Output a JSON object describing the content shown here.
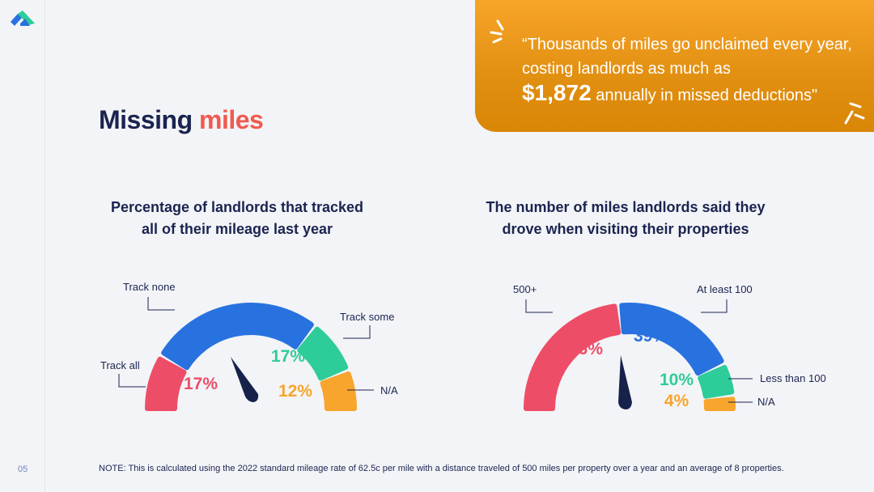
{
  "page": {
    "title_main": "Missing",
    "title_accent": "miles",
    "page_number": "05",
    "note": "NOTE: This is calculated using the 2022 standard mileage rate of 62.5c per mile with a distance traveled of 500 miles per property over a year and an average of 8 properties."
  },
  "quote": {
    "line_before": "“Thousands of miles go unclaimed every year, costing landlords as much as",
    "amount": "$1,872",
    "line_after": "annually in missed deductions\""
  },
  "colors": {
    "navy": "#1b2450",
    "red": "#ee4d68",
    "blue": "#2872e0",
    "green": "#2ecc9b",
    "orange": "#f7a52c",
    "title_accent": "#f05a4f"
  },
  "chart_data": [
    {
      "type": "gauge",
      "title_line1": "Percentage of landlords that tracked",
      "title_line2": "all of their mileage last year",
      "segments": [
        {
          "label": "Track all",
          "value": 17,
          "display": "17%",
          "color": "#ee4d68"
        },
        {
          "label": "Track none",
          "value": 54,
          "display": "54%",
          "color": "#2872e0"
        },
        {
          "label": "Track some",
          "value": 17,
          "display": "17%",
          "color": "#2ecc9b"
        },
        {
          "label": "N/A",
          "value": 12,
          "display": "12%",
          "color": "#f7a52c"
        }
      ]
    },
    {
      "type": "gauge",
      "title_line1": "The number of miles landlords said they",
      "title_line2": "drove when visiting their properties",
      "segments": [
        {
          "label": "500+",
          "value": 46,
          "display": "46%",
          "color": "#ee4d68"
        },
        {
          "label": "At least 100",
          "value": 39,
          "display": "39%",
          "color": "#2872e0"
        },
        {
          "label": "Less than 100",
          "value": 10,
          "display": "10%",
          "color": "#2ecc9b"
        },
        {
          "label": "N/A",
          "value": 4,
          "display": "4%",
          "color": "#f7a52c"
        }
      ]
    }
  ]
}
